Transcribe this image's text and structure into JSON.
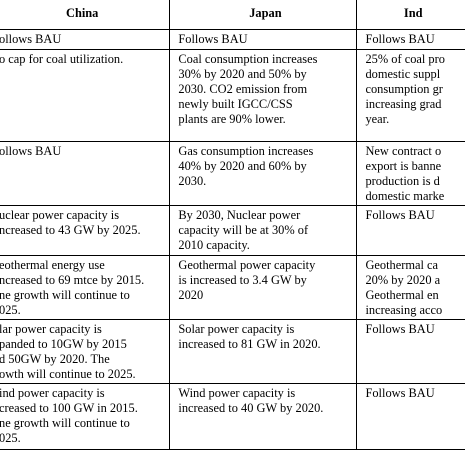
{
  "table": {
    "headers": [
      "China",
      "Japan",
      "Ind"
    ],
    "rows": [
      [
        "ollows BAU",
        "Follows BAU",
        "Follows BAU"
      ],
      [
        "o cap for coal utilization.",
        "Coal consumption increases\n30% by 2020 and 50% by\n2030. CO2 emission from\nnewly built IGCC/CSS\nplants are 90% lower.",
        "25% of coal pro\ndomestic suppl\nconsumption gr\nincreasing grad\nyear."
      ],
      [
        "ollows BAU",
        "Gas consumption increases\n40% by 2020 and 60% by\n2030.",
        "New contract o\nexport is banne\nproduction is d\ndomestic marke"
      ],
      [
        "uclear power capacity is\nncreased to 43 GW by 2025.",
        "By 2030, Nuclear power\ncapacity will be at 30% of\n2010 capacity.",
        "Follows BAU"
      ],
      [
        "eothermal energy use\nncreased to 69 mtce by 2015.\nne growth will continue to\n025.",
        "Geothermal power capacity\nis increased to  3.4 GW by\n2020",
        "Geothermal ca\n20% by 2020 a\nGeothermal en\nincreasing acco"
      ],
      [
        "lar power capacity is\npanded to 10GW by 2015\nd 50GW by 2020. The\nowth will continue to 2025.",
        "Solar power capacity is\nincreased to 81 GW in 2020.",
        "Follows BAU"
      ],
      [
        "ind power capacity is\ncreased to 100 GW in 2015.\nne growth will continue to\n025.",
        "Wind power capacity is\nincreased to 40 GW by 2020.",
        "Follows BAU"
      ]
    ]
  }
}
